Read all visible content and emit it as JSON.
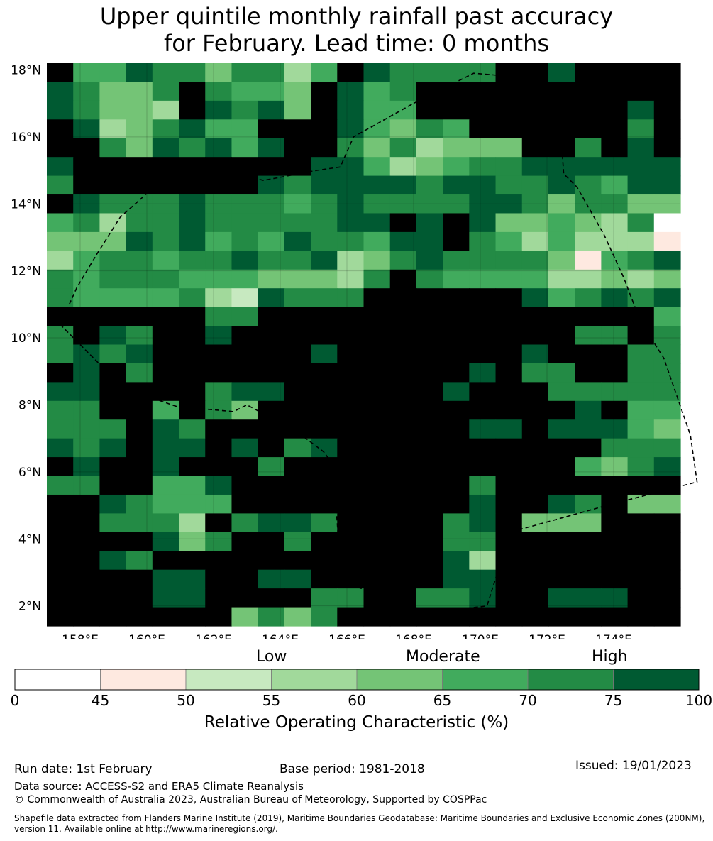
{
  "title_line1": "Upper quintile monthly rainfall past accuracy",
  "title_line2": "for February. Lead time: 0 months",
  "map": {
    "lon_labels": [
      "158°E",
      "160°E",
      "162°E",
      "164°E",
      "166°E",
      "168°E",
      "170°E",
      "172°E",
      "174°E"
    ],
    "lat_labels": [
      "18°N",
      "16°N",
      "14°N",
      "12°N",
      "10°N",
      "8°N",
      "6°N",
      "4°N",
      "2°N"
    ],
    "lon_values": [
      158,
      160,
      162,
      164,
      166,
      168,
      170,
      172,
      174
    ],
    "lat_values": [
      18,
      16,
      14,
      12,
      10,
      8,
      6,
      4,
      2
    ],
    "lon_range": [
      157,
      176
    ],
    "lat_range": [
      1.4,
      18.2
    ],
    "eez_boundary_lonlat": [
      [
        157.4,
        10.4
      ],
      [
        158.3,
        9.5
      ],
      [
        159.3,
        8.5
      ],
      [
        160.9,
        7.95
      ],
      [
        162.6,
        7.8
      ],
      [
        163.0,
        8.0
      ],
      [
        164.5,
        7.2
      ],
      [
        165.3,
        6.6
      ],
      [
        165.6,
        6.2
      ],
      [
        165.7,
        4.6
      ],
      [
        165.8,
        3.2
      ],
      [
        166.2,
        2.6
      ],
      [
        168.5,
        1.8
      ],
      [
        170.2,
        2.0
      ],
      [
        170.9,
        4.2
      ],
      [
        173.8,
        5.0
      ],
      [
        176.5,
        5.7
      ],
      [
        176.3,
        7.1
      ],
      [
        175.5,
        9.4
      ],
      [
        174.8,
        10.5
      ],
      [
        174.3,
        11.8
      ],
      [
        173.7,
        13.1
      ],
      [
        172.9,
        14.5
      ],
      [
        172.5,
        14.9
      ],
      [
        172.4,
        16.4
      ],
      [
        171.8,
        17.3
      ],
      [
        171.0,
        17.8
      ],
      [
        169.8,
        17.9
      ],
      [
        168.0,
        17.0
      ],
      [
        166.2,
        16.0
      ],
      [
        165.8,
        15.1
      ],
      [
        165.1,
        15.0
      ],
      [
        163.5,
        14.7
      ],
      [
        162.3,
        15.0
      ],
      [
        161.2,
        14.9
      ],
      [
        160.1,
        14.4
      ],
      [
        159.2,
        13.6
      ],
      [
        158.5,
        12.5
      ],
      [
        157.9,
        11.5
      ],
      [
        157.4,
        10.4
      ]
    ],
    "grid": {
      "note_cols": 24,
      "rows": [
        [
          8,
          5,
          5,
          7,
          6,
          6,
          4,
          6,
          6,
          3,
          5,
          8,
          7,
          6,
          6,
          6,
          6,
          8,
          8,
          7,
          8,
          8,
          8,
          8
        ],
        [
          7,
          6,
          4,
          4,
          6,
          8,
          6,
          5,
          5,
          4,
          8,
          7,
          5,
          6,
          8,
          8,
          8,
          8,
          8,
          8,
          8,
          8,
          8,
          8
        ],
        [
          7,
          6,
          4,
          4,
          3,
          8,
          7,
          6,
          7,
          4,
          8,
          7,
          5,
          5,
          8,
          8,
          8,
          8,
          8,
          8,
          8,
          8,
          7,
          8
        ],
        [
          8,
          7,
          3,
          4,
          6,
          7,
          5,
          5,
          8,
          8,
          8,
          7,
          5,
          4,
          6,
          5,
          8,
          8,
          8,
          8,
          8,
          8,
          6,
          8
        ],
        [
          8,
          8,
          6,
          4,
          7,
          6,
          7,
          5,
          7,
          8,
          8,
          6,
          4,
          6,
          3,
          4,
          4,
          4,
          8,
          8,
          6,
          8,
          7,
          8
        ],
        [
          7,
          8,
          8,
          8,
          8,
          8,
          8,
          8,
          8,
          8,
          7,
          7,
          5,
          3,
          4,
          5,
          6,
          6,
          7,
          7,
          7,
          7,
          7,
          7
        ],
        [
          6,
          8,
          8,
          8,
          8,
          8,
          8,
          8,
          7,
          6,
          7,
          7,
          7,
          7,
          6,
          7,
          7,
          6,
          6,
          7,
          6,
          5,
          7,
          7
        ],
        [
          8,
          7,
          6,
          6,
          6,
          7,
          6,
          6,
          6,
          5,
          6,
          7,
          6,
          6,
          6,
          6,
          7,
          7,
          6,
          4,
          6,
          6,
          4,
          4
        ],
        [
          5,
          6,
          3,
          6,
          6,
          7,
          6,
          6,
          6,
          6,
          6,
          7,
          7,
          8,
          7,
          8,
          7,
          4,
          4,
          5,
          4,
          3,
          6,
          0
        ],
        [
          4,
          4,
          4,
          7,
          6,
          7,
          5,
          6,
          5,
          7,
          6,
          6,
          5,
          7,
          7,
          8,
          6,
          5,
          3,
          5,
          3,
          3,
          3,
          1
        ],
        [
          3,
          5,
          6,
          6,
          5,
          6,
          6,
          7,
          6,
          6,
          7,
          3,
          4,
          6,
          7,
          6,
          6,
          6,
          6,
          4,
          1,
          5,
          6,
          7
        ],
        [
          6,
          5,
          6,
          6,
          6,
          5,
          5,
          5,
          4,
          4,
          4,
          3,
          6,
          8,
          6,
          5,
          5,
          5,
          5,
          3,
          3,
          4,
          3,
          4
        ],
        [
          6,
          5,
          5,
          5,
          5,
          6,
          3,
          2,
          7,
          6,
          6,
          6,
          8,
          8,
          8,
          8,
          8,
          8,
          7,
          5,
          6,
          7,
          6,
          7
        ],
        [
          8,
          8,
          8,
          8,
          8,
          8,
          6,
          6,
          8,
          8,
          8,
          8,
          8,
          8,
          8,
          8,
          8,
          8,
          8,
          8,
          8,
          8,
          8,
          5
        ],
        [
          6,
          8,
          7,
          6,
          8,
          8,
          7,
          8,
          8,
          8,
          8,
          8,
          8,
          8,
          8,
          8,
          8,
          8,
          8,
          8,
          6,
          6,
          8,
          6
        ],
        [
          6,
          7,
          6,
          7,
          8,
          8,
          8,
          8,
          8,
          8,
          7,
          8,
          8,
          8,
          8,
          8,
          8,
          8,
          7,
          8,
          8,
          8,
          6,
          6
        ],
        [
          8,
          7,
          8,
          6,
          8,
          8,
          8,
          8,
          8,
          8,
          8,
          8,
          8,
          8,
          8,
          8,
          7,
          8,
          6,
          6,
          8,
          8,
          6,
          6
        ],
        [
          7,
          7,
          8,
          8,
          8,
          8,
          6,
          7,
          7,
          8,
          8,
          8,
          8,
          8,
          8,
          7,
          8,
          8,
          8,
          6,
          6,
          6,
          6,
          6
        ],
        [
          6,
          6,
          8,
          8,
          5,
          8,
          6,
          4,
          8,
          8,
          8,
          8,
          8,
          8,
          8,
          8,
          8,
          8,
          8,
          8,
          7,
          8,
          5,
          5
        ],
        [
          6,
          6,
          6,
          8,
          7,
          6,
          8,
          8,
          8,
          8,
          8,
          8,
          8,
          8,
          8,
          8,
          7,
          7,
          8,
          7,
          7,
          7,
          5,
          4
        ],
        [
          7,
          6,
          7,
          8,
          7,
          7,
          8,
          7,
          8,
          6,
          7,
          8,
          8,
          8,
          8,
          8,
          8,
          8,
          8,
          8,
          8,
          6,
          6,
          6
        ],
        [
          8,
          7,
          8,
          8,
          7,
          8,
          8,
          8,
          6,
          8,
          8,
          8,
          8,
          8,
          8,
          8,
          8,
          8,
          8,
          8,
          5,
          4,
          6,
          7
        ],
        [
          6,
          6,
          8,
          8,
          5,
          5,
          7,
          8,
          8,
          8,
          8,
          8,
          8,
          8,
          8,
          8,
          6,
          8,
          8,
          8,
          8,
          8,
          8,
          8
        ],
        [
          8,
          8,
          7,
          6,
          5,
          5,
          5,
          8,
          8,
          8,
          8,
          8,
          8,
          8,
          8,
          8,
          7,
          8,
          8,
          7,
          6,
          8,
          4,
          4
        ],
        [
          8,
          8,
          6,
          6,
          6,
          3,
          8,
          6,
          7,
          7,
          6,
          8,
          8,
          8,
          8,
          6,
          7,
          8,
          4,
          4,
          4,
          8,
          8,
          8
        ],
        [
          8,
          8,
          8,
          8,
          7,
          4,
          6,
          8,
          8,
          6,
          8,
          8,
          8,
          8,
          8,
          6,
          6,
          8,
          8,
          8,
          8,
          8,
          8,
          8
        ],
        [
          8,
          8,
          7,
          6,
          8,
          8,
          8,
          8,
          8,
          8,
          8,
          8,
          8,
          8,
          8,
          7,
          3,
          8,
          8,
          8,
          8,
          8,
          8,
          8
        ],
        [
          8,
          8,
          8,
          8,
          7,
          7,
          8,
          8,
          7,
          7,
          8,
          8,
          8,
          8,
          8,
          7,
          7,
          8,
          8,
          8,
          8,
          8,
          8,
          8
        ],
        [
          8,
          8,
          8,
          8,
          7,
          7,
          8,
          8,
          8,
          8,
          6,
          6,
          8,
          8,
          6,
          6,
          7,
          8,
          8,
          7,
          7,
          7,
          8,
          8
        ],
        [
          8,
          8,
          8,
          8,
          8,
          8,
          8,
          4,
          6,
          4,
          6,
          8,
          8,
          8,
          8,
          8,
          8,
          8,
          8,
          8,
          8,
          8,
          8,
          8
        ]
      ]
    }
  },
  "colorbar": {
    "bounds": [
      0,
      45,
      50,
      55,
      60,
      65,
      70,
      75,
      100
    ],
    "colors": [
      "#ffffff",
      "#fee9e0",
      "#c7e9c0",
      "#a1d99b",
      "#74c476",
      "#41ab5d",
      "#238b45",
      "#005a32"
    ],
    "category_labels": {
      "low": "Low",
      "moderate": "Moderate",
      "high": "High"
    },
    "tick_labels": [
      "0",
      "45",
      "50",
      "55",
      "60",
      "65",
      "70",
      "75",
      "100"
    ],
    "title": "Relative Operating Characteristic (%)"
  },
  "footer": {
    "run_date": "Run date: 1st February",
    "base_period": "Base period: 1981-2018",
    "issued": "Issued: 19/01/2023",
    "data_source": "Data source: ACCESS-S2 and ERA5 Climate Reanalysis",
    "copyright": "© Commonwealth of Australia 2023, Australian Bureau of Meteorology, Supported by COSPPac",
    "shapefile_line1": "Shapefile data extracted from Flanders Marine Institute (2019), Maritime Boundaries Geodatabase: Maritime Boundaries and Exclusive Economic Zones (200NM),",
    "shapefile_line2": "version 11. Available online at http://www.marineregions.org/."
  }
}
